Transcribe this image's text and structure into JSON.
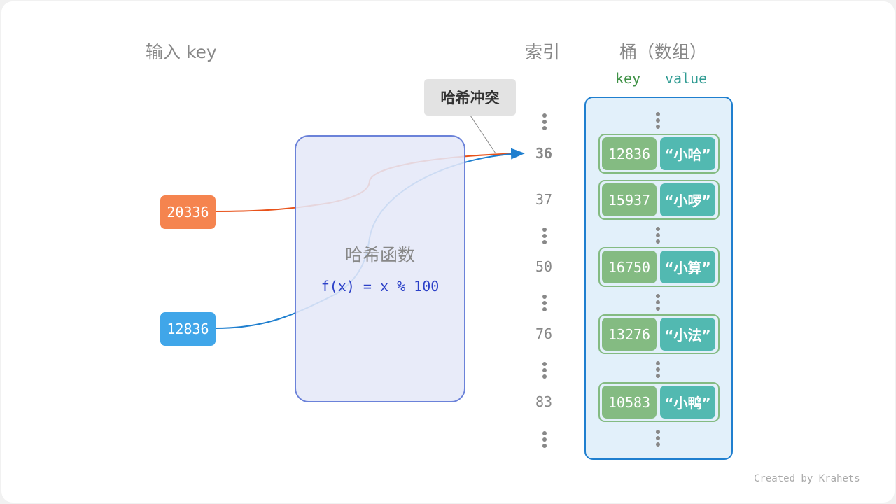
{
  "headers": {
    "input_key": "输入 key",
    "index": "索引",
    "bucket": "桶（数组）",
    "key_col": "key",
    "value_col": "value"
  },
  "inputs": [
    {
      "key": "20336",
      "color": "#f5844f"
    },
    {
      "key": "12836",
      "color": "#40a6e9"
    }
  ],
  "hash_function": {
    "title": "哈希函数",
    "formula": "f(x) = x % 100"
  },
  "collision_label": "哈希冲突",
  "indices": [
    "36",
    "37",
    "50",
    "76",
    "83"
  ],
  "entries": [
    {
      "key": "12836",
      "value": "“小哈”"
    },
    {
      "key": "15937",
      "value": "“小啰”"
    },
    {
      "key": "16750",
      "value": "“小算”"
    },
    {
      "key": "13276",
      "value": "“小法”"
    },
    {
      "key": "10583",
      "value": "“小鸭”"
    }
  ],
  "colors": {
    "key_cell": "#84bb82",
    "value_cell": "#52b9b1",
    "bucket_border": "#1f7fcf",
    "hash_box_border": "#6b82d9",
    "orange_line": "#e8521a",
    "blue_line": "#1f7fcf"
  },
  "footer": "Created by Krahets"
}
